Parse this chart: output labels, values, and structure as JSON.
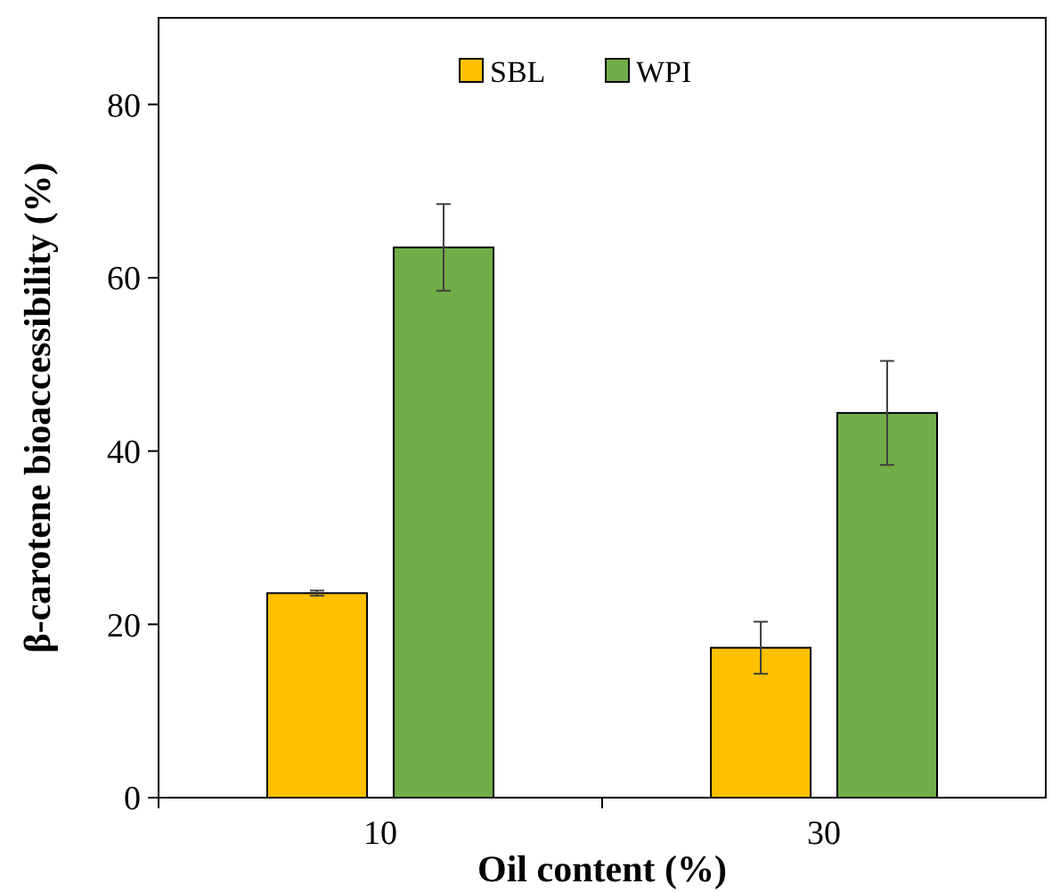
{
  "chart_data": {
    "type": "bar",
    "xlabel": "Oil content (%)",
    "ylabel": "β-carotene bioaccessibility (%)",
    "categories": [
      "10",
      "30"
    ],
    "series": [
      {
        "name": "SBL",
        "color": "#ffc000",
        "values": [
          23.6,
          17.3
        ],
        "errors": [
          0.3,
          3
        ]
      },
      {
        "name": "WPI",
        "color": "#70ad47",
        "values": [
          63.5,
          44.4
        ],
        "errors": [
          5,
          6
        ]
      }
    ],
    "ylim": [
      0,
      90
    ],
    "yticks": [
      0,
      20,
      40,
      60,
      80
    ],
    "legend": "top",
    "grid": false
  }
}
